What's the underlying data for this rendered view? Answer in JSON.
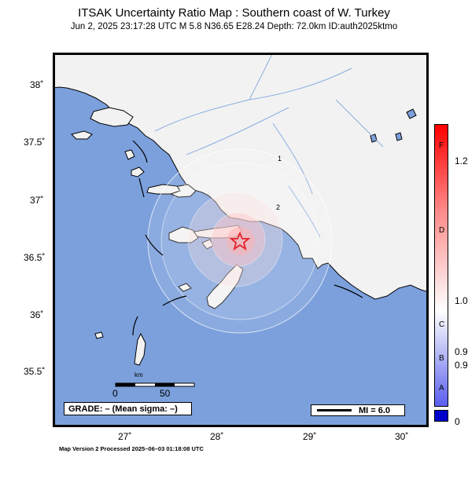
{
  "title": "ITSAK Uncertainty Ratio Map : Southern coast of W. Turkey",
  "subtitle": "Jun  2, 2025 23:17:28 UTC   M 5.8   N36.65 E28.24   Depth: 72.0km   ID:auth2025ktmo",
  "map": {
    "lat_labels": [
      "38˚",
      "37.5˚",
      "37˚",
      "36.5˚",
      "36˚",
      "35.5˚"
    ],
    "lon_labels": [
      "27˚",
      "28˚",
      "29˚",
      "30˚"
    ],
    "epicenter": {
      "lat": 36.65,
      "lon": 28.24
    },
    "contour_labels": [
      "1",
      "2"
    ],
    "scale_bar": {
      "label_start": "0",
      "label_end": "50",
      "unit": "km"
    },
    "colors": {
      "sea": "#7ba0dc",
      "land": "#f2f2f2",
      "epicenter_star": "#e8202a",
      "rivers": "#8aaee0"
    }
  },
  "grade_box": "GRADE: – (Mean sigma: –)",
  "legend": {
    "mi_label": "MI = 6.0"
  },
  "colorbar": {
    "letters": [
      "F",
      "D",
      "C",
      "B",
      "A"
    ],
    "values": [
      "1.2",
      "1.0",
      "0.9",
      "0.9",
      "0"
    ],
    "colors": {
      "top": "#ff0000",
      "middle": "#ffffff",
      "bottom": "#0000cc"
    }
  },
  "footer": "Map Version 2 Processed 2025–06–03 01:18:08 UTC"
}
